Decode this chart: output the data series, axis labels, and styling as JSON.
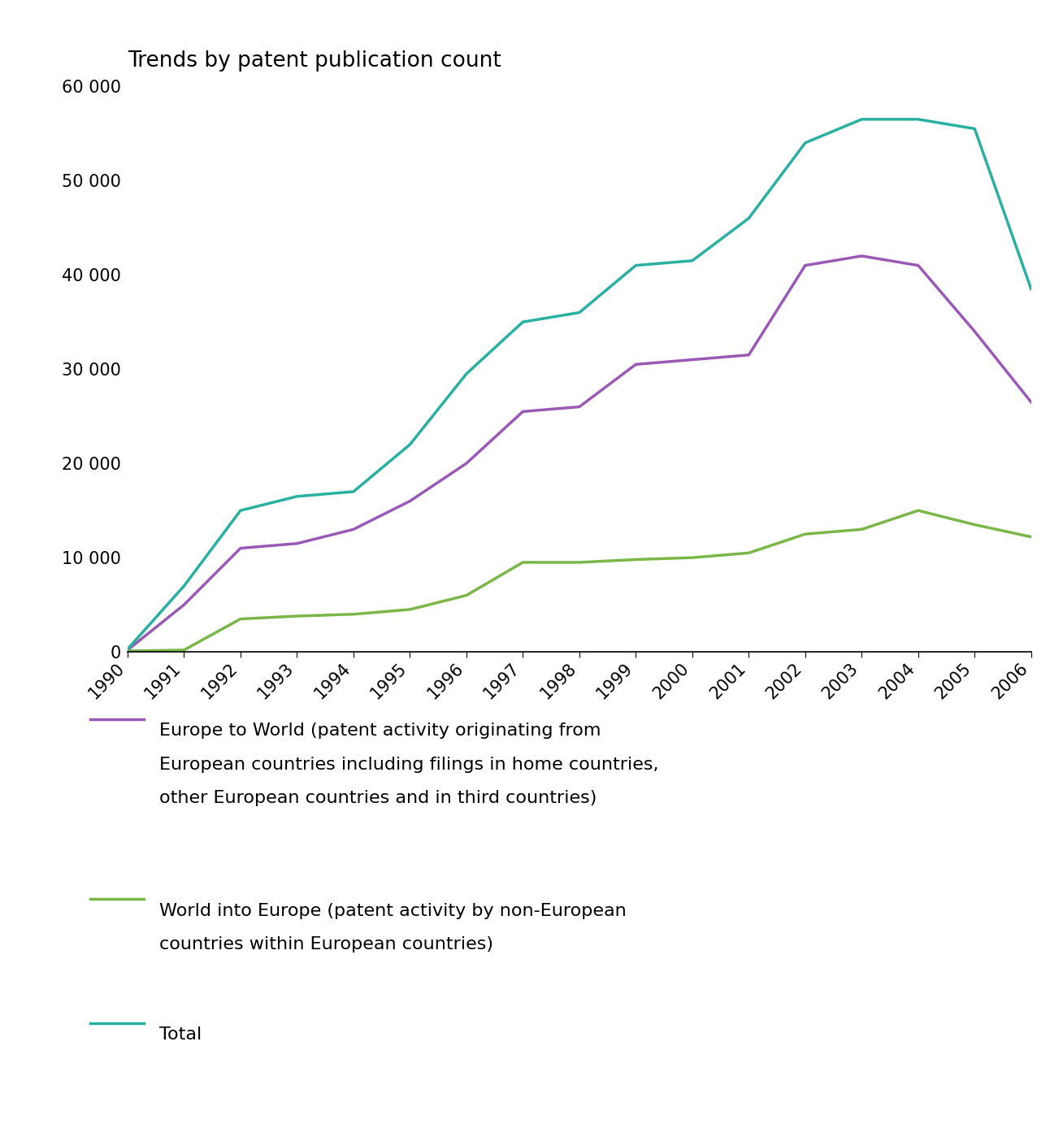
{
  "title": "Trends by patent publication count",
  "years": [
    1990,
    1991,
    1992,
    1993,
    1994,
    1995,
    1996,
    1997,
    1998,
    1999,
    2000,
    2001,
    2002,
    2003,
    2004,
    2005,
    2006
  ],
  "europe_to_world": [
    200,
    5000,
    11000,
    11500,
    13000,
    16000,
    20000,
    25500,
    26000,
    30500,
    31000,
    31500,
    41000,
    42000,
    41000,
    34000,
    26500
  ],
  "world_into_europe": [
    100,
    200,
    3500,
    3800,
    4000,
    4500,
    6000,
    9500,
    9500,
    9800,
    10000,
    10500,
    12500,
    13000,
    15000,
    13500,
    12200
  ],
  "total": [
    300,
    7000,
    15000,
    16500,
    17000,
    22000,
    29500,
    35000,
    36000,
    41000,
    41500,
    46000,
    54000,
    56500,
    56500,
    55500,
    38500
  ],
  "europe_to_world_color": "#9b59b6",
  "world_into_europe_color": "#7ab648",
  "total_color": "#2ab0a0",
  "ylim": [
    0,
    62000
  ],
  "yticks": [
    0,
    10000,
    20000,
    30000,
    40000,
    50000,
    60000
  ],
  "ytick_labels": [
    "0",
    "10 000",
    "20 000",
    "30 000",
    "40 000",
    "50 000",
    "60 000"
  ],
  "legend_europe_to_world_line1": "Europe to World (patent activity originating from",
  "legend_europe_to_world_line2": "European countries including filings in home countries,",
  "legend_europe_to_world_line3": "other European countries and in third countries)",
  "legend_world_into_europe_line1": "World into Europe (patent activity by non-European",
  "legend_world_into_europe_line2": "countries within European countries)",
  "legend_total": "Total",
  "line_width": 2.5,
  "title_fontsize": 19,
  "tick_fontsize": 15,
  "legend_fontsize": 16
}
